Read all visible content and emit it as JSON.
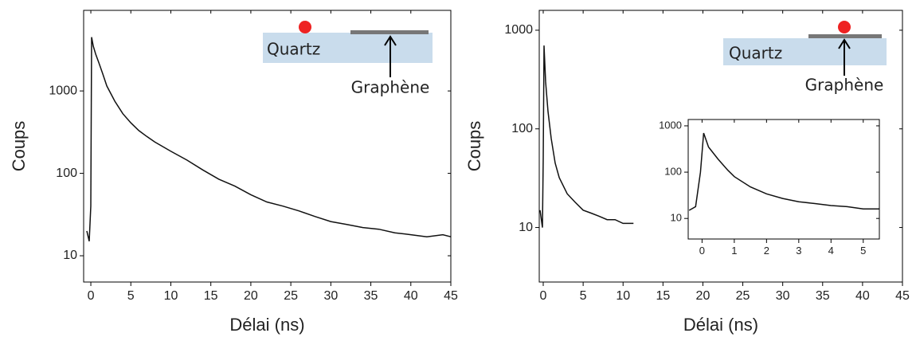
{
  "chart_data": [
    {
      "type": "line",
      "xlabel": "Délai (ns)",
      "ylabel": "Coups",
      "log_y": true,
      "xlim": [
        -0.9,
        45
      ],
      "ylim": [
        4.8,
        9500
      ],
      "xticks": [
        0,
        5,
        10,
        15,
        20,
        25,
        30,
        35,
        40,
        45
      ],
      "yticks": [
        10,
        100,
        1000
      ],
      "annotations": [
        "Quartz",
        "Graphène"
      ],
      "x": [
        -0.5,
        -0.2,
        0,
        0.1,
        0.3,
        0.6,
        1,
        1.5,
        2,
        3,
        4,
        5,
        6,
        7,
        8,
        10,
        12,
        14,
        16,
        18,
        20,
        22,
        24,
        26,
        28,
        30,
        32,
        34,
        36,
        38,
        40,
        42,
        44,
        45
      ],
      "series": [
        {
          "color": "#111111",
          "values": [
            20,
            15,
            40,
            4500,
            3500,
            2800,
            2200,
            1600,
            1150,
            750,
            530,
            410,
            330,
            280,
            240,
            185,
            145,
            110,
            85,
            70,
            55,
            45,
            40,
            35,
            30,
            26,
            24,
            22,
            21,
            19,
            18,
            17,
            18,
            17
          ]
        }
      ]
    },
    {
      "type": "line",
      "xlabel": "Délai (ns)",
      "ylabel": "Coups",
      "log_y": true,
      "xlim": [
        -0.5,
        45
      ],
      "ylim": [
        2.8,
        1590
      ],
      "xticks": [
        0,
        5,
        10,
        15,
        20,
        25,
        30,
        35,
        40,
        45
      ],
      "yticks": [
        10,
        100,
        1000
      ],
      "annotations": [
        "Quartz",
        "Graphène"
      ],
      "x": [
        -0.4,
        -0.1,
        0,
        0.1,
        0.3,
        0.6,
        1,
        1.5,
        2,
        3,
        4,
        5,
        6,
        7,
        8,
        9,
        10,
        11,
        11.3
      ],
      "series": [
        {
          "color": "#111111",
          "values": [
            15,
            10,
            50,
            700,
            300,
            150,
            80,
            45,
            32,
            22,
            18,
            15,
            14,
            13,
            12,
            12,
            11,
            11,
            11
          ]
        }
      ]
    },
    {
      "type": "line",
      "log_y": true,
      "xlim": [
        -0.43,
        5.5
      ],
      "ylim": [
        3.6,
        1370
      ],
      "xticks": [
        0,
        1,
        2,
        3,
        4,
        5
      ],
      "yticks": [
        10,
        100,
        1000
      ],
      "x": [
        -0.4,
        -0.2,
        -0.05,
        0.05,
        0.2,
        0.5,
        0.8,
        1,
        1.5,
        2,
        2.5,
        3,
        3.5,
        4,
        4.5,
        5,
        5.5
      ],
      "series": [
        {
          "color": "#111111",
          "values": [
            15,
            18,
            100,
            700,
            350,
            190,
            110,
            80,
            48,
            34,
            27,
            23,
            21,
            19,
            18,
            16,
            16
          ]
        }
      ]
    }
  ]
}
